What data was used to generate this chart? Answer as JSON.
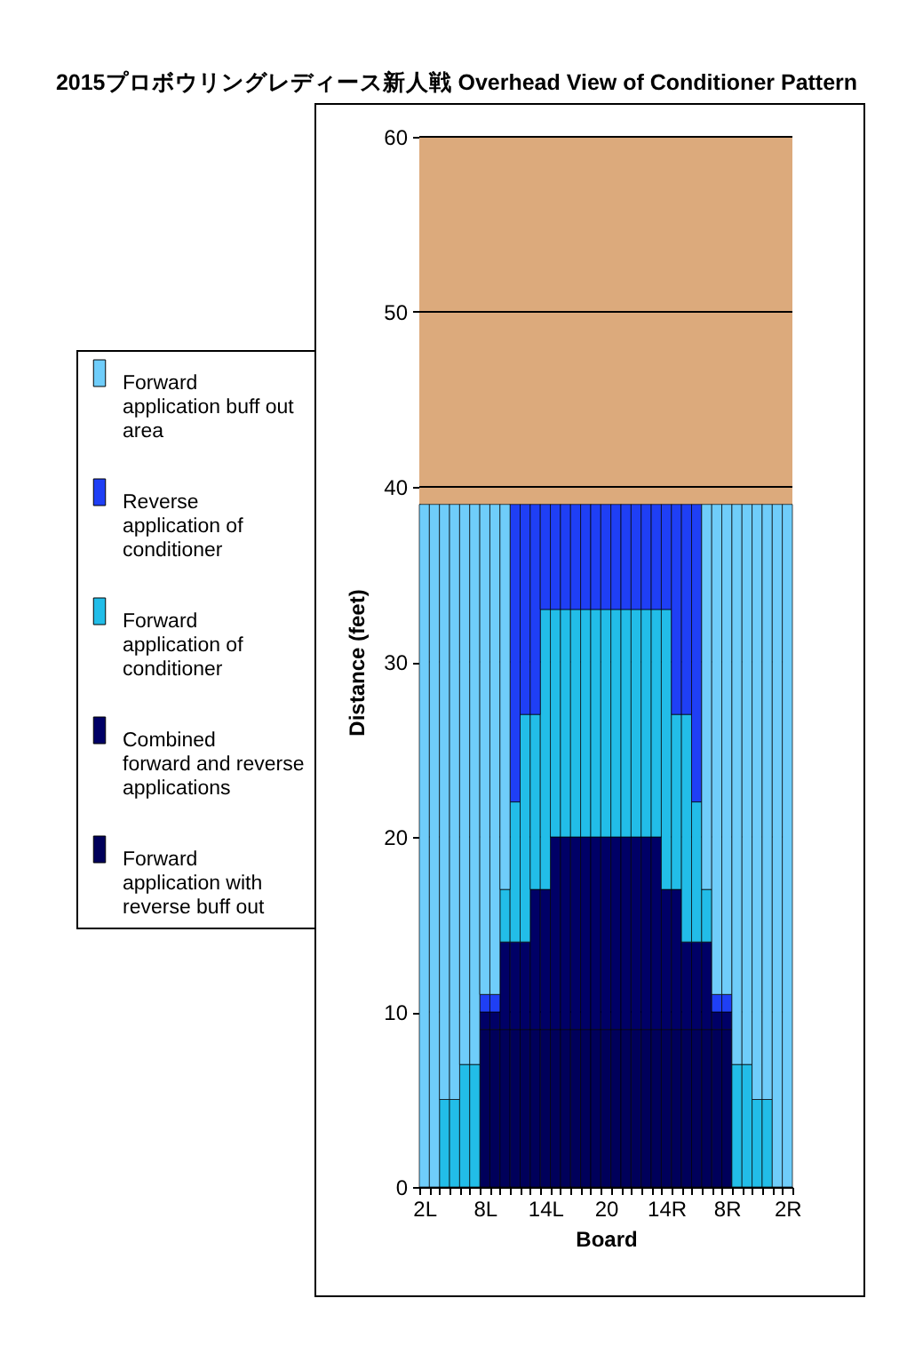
{
  "chart_data": {
    "type": "bar",
    "title": "2015プロボウリングレディース新人戦 Overhead View of Conditioner Pattern",
    "xlabel": "Board",
    "ylabel": "Distance (feet)",
    "stacked": true,
    "legend": "left",
    "grid": "y",
    "categories": [
      "2L",
      null,
      null,
      null,
      null,
      null,
      "8L",
      null,
      null,
      null,
      null,
      null,
      "14L",
      null,
      null,
      null,
      null,
      null,
      "20",
      null,
      null,
      null,
      null,
      null,
      "14R",
      null,
      null,
      null,
      null,
      null,
      "8R",
      null,
      null,
      null,
      null,
      null,
      "2R"
    ],
    "series": [
      {
        "name": "Forward application with reverse buff out",
        "color": "#00005a",
        "values": [
          null,
          null,
          null,
          null,
          null,
          null,
          9,
          9,
          9,
          9,
          9,
          9,
          9,
          9,
          9,
          9,
          9,
          9,
          9,
          9,
          9,
          9,
          9,
          9,
          9,
          9,
          9,
          9,
          9,
          9,
          9,
          null,
          null,
          null,
          null,
          null,
          null
        ]
      },
      {
        "name": "Combined forward and reverse applications",
        "color": "#000066",
        "values": [
          null,
          null,
          null,
          null,
          null,
          null,
          1,
          1,
          5,
          5,
          5,
          8,
          8,
          11,
          11,
          11,
          11,
          11,
          11,
          11,
          11,
          11,
          11,
          11,
          8,
          8,
          5,
          5,
          5,
          1,
          1,
          null,
          null,
          null,
          null,
          null,
          null
        ]
      },
      {
        "name": "Forward application of conditioner",
        "color": "#22bde8",
        "values": [
          null,
          null,
          5,
          5,
          7,
          7,
          null,
          null,
          3,
          8,
          13,
          10,
          16,
          13,
          13,
          13,
          13,
          13,
          13,
          13,
          13,
          13,
          13,
          13,
          16,
          10,
          13,
          8,
          3,
          null,
          null,
          7,
          7,
          5,
          5,
          null,
          null
        ]
      },
      {
        "name": "Reverse application of conditioner",
        "color": "#1f3ff5",
        "values": [
          null,
          null,
          null,
          null,
          null,
          null,
          1,
          1,
          null,
          17,
          12,
          12,
          6,
          6,
          6,
          6,
          6,
          6,
          6,
          6,
          6,
          6,
          6,
          6,
          6,
          12,
          12,
          17,
          null,
          1,
          1,
          null,
          null,
          null,
          null,
          null,
          null
        ]
      },
      {
        "name": "Forward application buff out area",
        "color": "#6fcdfa",
        "values": [
          39,
          39,
          34,
          34,
          32,
          32,
          28,
          28,
          22,
          null,
          null,
          null,
          null,
          null,
          null,
          null,
          null,
          null,
          null,
          null,
          null,
          null,
          null,
          null,
          null,
          null,
          null,
          null,
          22,
          28,
          28,
          32,
          32,
          34,
          34,
          39,
          39
        ]
      }
    ],
    "ylim": [
      0,
      60
    ],
    "yticks": [
      0,
      10,
      20,
      30,
      40,
      50,
      60
    ],
    "bands": [
      {
        "axis": "y",
        "from": 39,
        "to": 60,
        "color": "#dcaa7c"
      }
    ]
  }
}
